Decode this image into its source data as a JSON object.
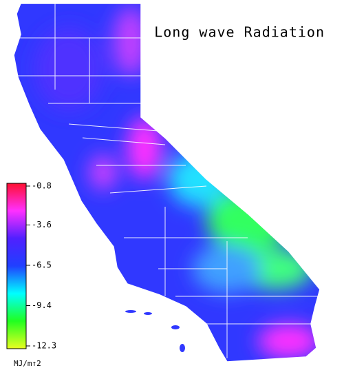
{
  "map": {
    "title": "Long wave Radiation",
    "colorbar": {
      "lim": [
        -0.8,
        -12.3
      ],
      "ticks": [
        -0.8,
        -3.6,
        -6.5,
        -9.4,
        -12.3
      ],
      "colors": [
        "#ff1030",
        "#ff30ff",
        "#5020ff",
        "#2040ff",
        "#00ffff",
        "#20ff20",
        "#e8ff20"
      ],
      "unit": "MJ/m↑2"
    }
  }
}
